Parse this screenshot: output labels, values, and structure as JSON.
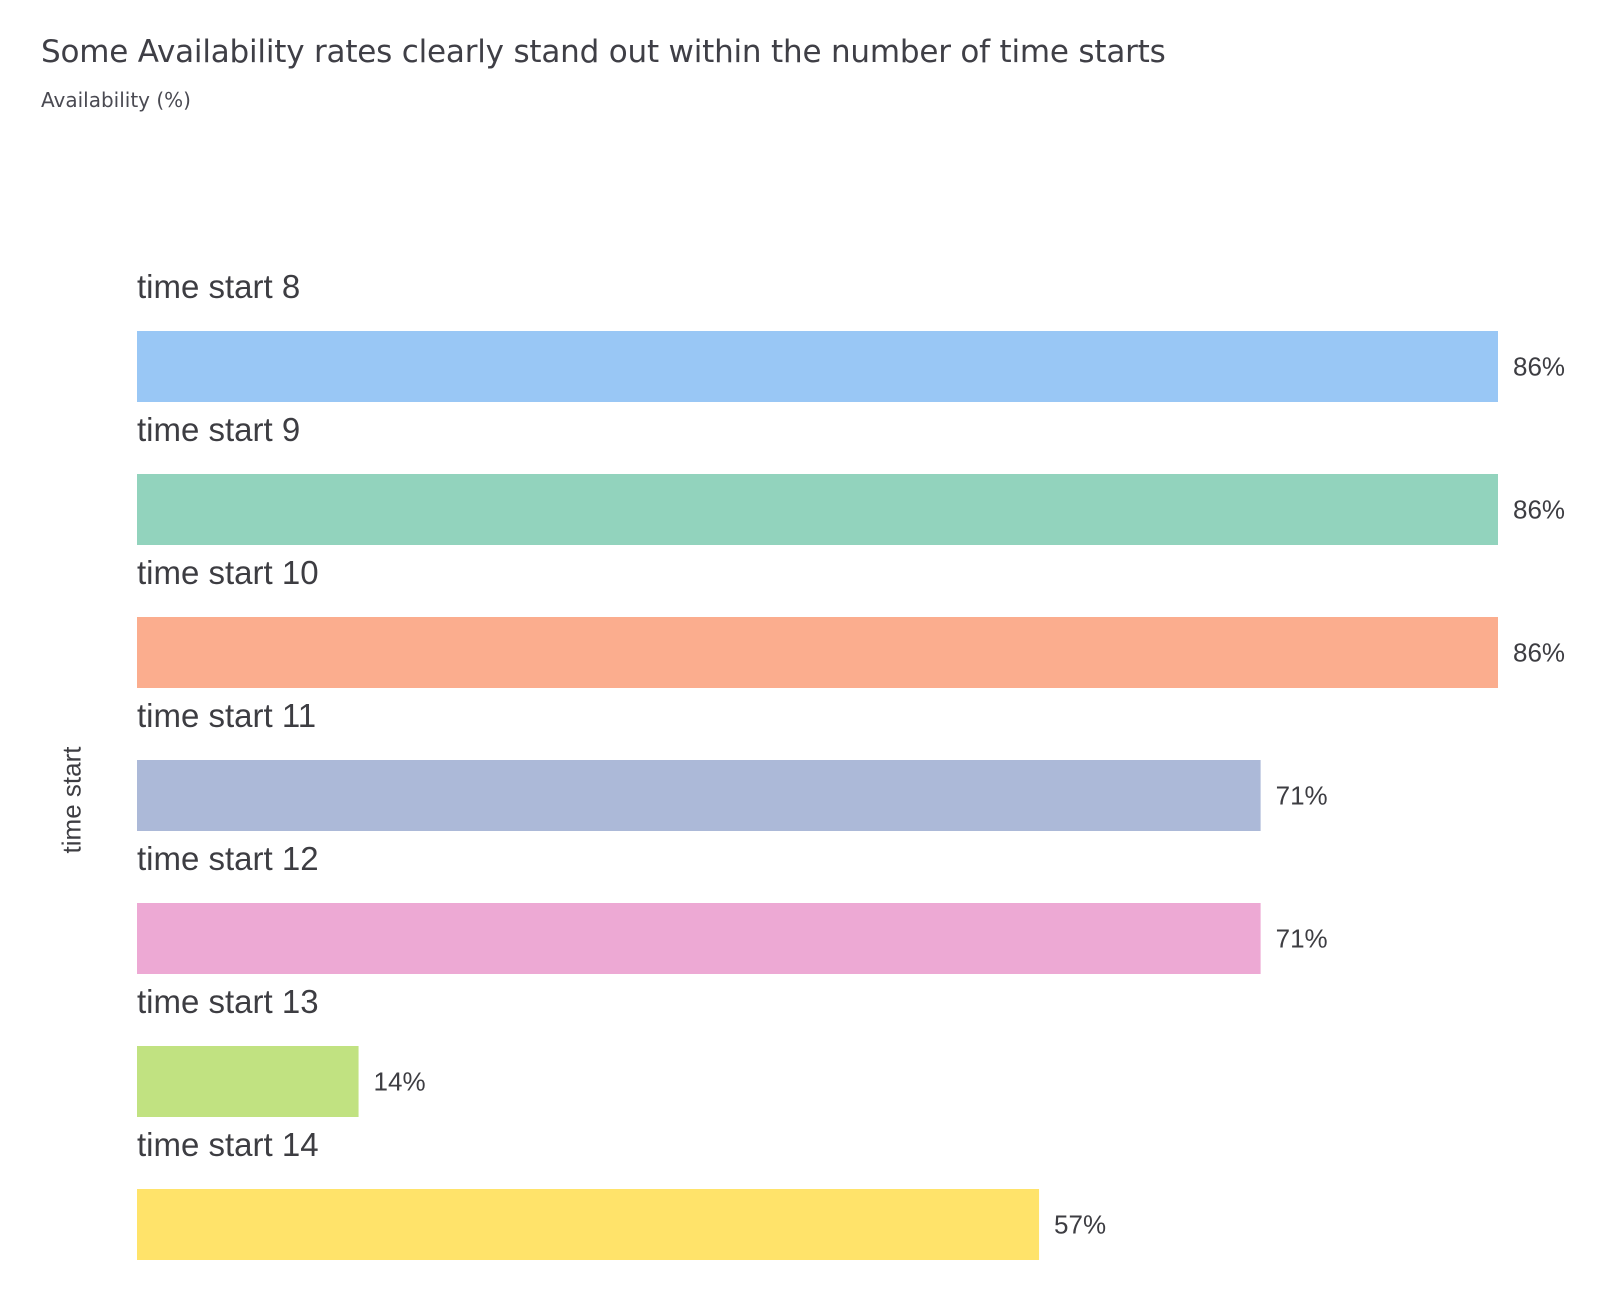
{
  "chart_data": {
    "type": "bar",
    "orientation": "horizontal",
    "title": "Some Availability rates clearly stand out within the number of time starts",
    "subtitle": "Availability (%)",
    "ylabel": "time start",
    "xlim": [
      0,
      86
    ],
    "value_suffix": "%",
    "categories": [
      "time start 8",
      "time start 9",
      "time start 10",
      "time start 11",
      "time start 12",
      "time start 13",
      "time start 14"
    ],
    "values": [
      86,
      86,
      86,
      71,
      71,
      14,
      57
    ],
    "colors": [
      "#99c7f5",
      "#92d3bd",
      "#fbad8e",
      "#acb9d8",
      "#eda9d4",
      "#c1e281",
      "#ffe36a"
    ],
    "grid": false,
    "legend": "none"
  }
}
